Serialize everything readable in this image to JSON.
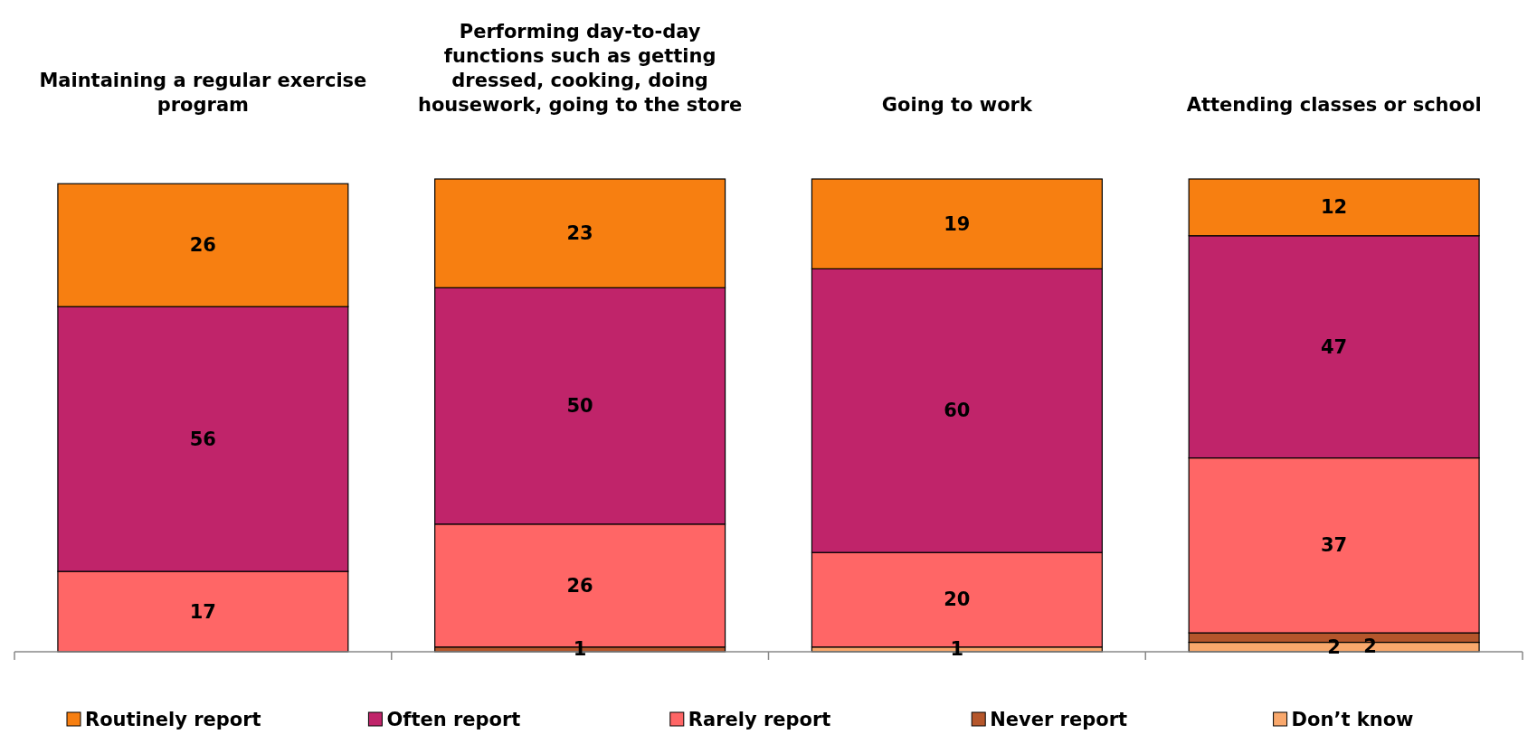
{
  "chart_data": {
    "type": "bar",
    "stacked": true,
    "legend": "bottom",
    "categories": [
      "Maintaining a regular exercise program",
      "Performing day-to-day functions such as getting dressed, cooking, doing housework, going to the store",
      "Going to work",
      "Attending classes or school"
    ],
    "series": [
      {
        "name": "Don’t know",
        "color": "#f9a86c",
        "values": [
          0,
          0,
          1,
          2
        ],
        "value_labels": [
          null,
          null,
          "1",
          "2"
        ]
      },
      {
        "name": "Never report",
        "color": "#b5562b",
        "values": [
          0,
          1,
          0,
          2
        ],
        "value_labels": [
          null,
          "1",
          null,
          "2"
        ]
      },
      {
        "name": "Rarely report",
        "color": "#ff6666",
        "values": [
          17,
          26,
          20,
          37
        ],
        "value_labels": [
          "17",
          "26",
          "20",
          "37"
        ]
      },
      {
        "name": "Often report",
        "color": "#c0246a",
        "values": [
          56,
          50,
          60,
          47
        ],
        "value_labels": [
          "56",
          "50",
          "60",
          "47"
        ]
      },
      {
        "name": "Routinely report",
        "color": "#f77f11",
        "values": [
          26,
          23,
          19,
          12
        ],
        "value_labels": [
          "26",
          "23",
          "19",
          "12"
        ]
      }
    ]
  }
}
